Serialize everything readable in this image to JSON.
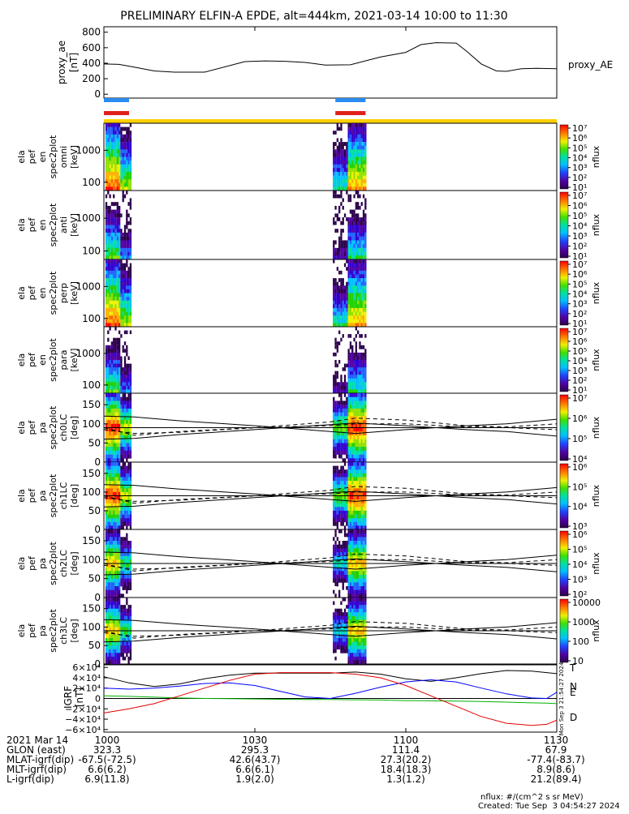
{
  "title": "PRELIMINARY ELFIN-A EPDE, alt=444km, 2021-03-14 10:00 to 11:30",
  "colors": {
    "blue_bar": "#2a8cf0",
    "red_bar": "#e0201c",
    "yellow_bar": "#ffd000",
    "igrf_T": "#000000",
    "igrf_N": "#0000ff",
    "igrf_E": "#00b000",
    "igrf_D": "#e00000"
  },
  "time_axis": {
    "start_minutes": 0,
    "end_minutes": 90,
    "tick_minutes": [
      0,
      30,
      60,
      90
    ]
  },
  "chart_data": [
    {
      "type": "line",
      "panel": "proxy_ae",
      "ylabel": [
        "proxy_ae",
        "[nT]"
      ],
      "legend": "proxy_AE",
      "ylim": [
        -50,
        870
      ],
      "yticks": [
        "800",
        "600",
        "400",
        "200",
        "0"
      ],
      "ytick_values": [
        800,
        600,
        400,
        200,
        0
      ],
      "x_minutes": [
        0,
        3,
        6,
        10,
        14,
        20,
        28,
        32,
        36,
        40,
        44,
        49,
        55,
        60,
        63,
        66,
        70,
        72,
        75,
        78,
        80,
        83,
        86,
        90
      ],
      "values": [
        390,
        385,
        350,
        300,
        285,
        285,
        420,
        430,
        425,
        410,
        375,
        380,
        480,
        540,
        640,
        665,
        660,
        560,
        390,
        300,
        295,
        330,
        335,
        330
      ]
    },
    {
      "type": "bar",
      "panel": "science_zone_bars",
      "segments_minutes": [
        [
          0,
          5
        ],
        [
          46,
          52
        ]
      ],
      "full_bar_minutes": [
        0,
        90
      ]
    },
    {
      "type": "heatmap",
      "panel": "ela_pef_en_spec2plot_omni",
      "ylabel": [
        "ela",
        "pef",
        "en",
        "spec2plot",
        "omni",
        "[keV]"
      ],
      "yscale": "log",
      "ylim_kev": [
        55,
        7000
      ],
      "yticks": [
        "1000",
        "100"
      ],
      "ytick_values": [
        1000,
        100
      ],
      "colorbar_label": "nflux",
      "colorbar_ticks": [
        "10⁷",
        "10⁶",
        "10⁵",
        "10⁴",
        "10³",
        "10²",
        "10¹"
      ],
      "colorbar_exponents": [
        7,
        6,
        5,
        4,
        3,
        2,
        1
      ],
      "intensity": "high"
    },
    {
      "type": "heatmap",
      "panel": "ela_pef_en_spec2plot_anti",
      "ylabel": [
        "ela",
        "pef",
        "en",
        "spec2plot",
        "anti",
        "[keV]"
      ],
      "yscale": "log",
      "ylim_kev": [
        55,
        7000
      ],
      "yticks": [
        "1000",
        "100"
      ],
      "ytick_values": [
        1000,
        100
      ],
      "colorbar_label": "nflux",
      "colorbar_ticks": [
        "10⁷",
        "10⁶",
        "10⁵",
        "10⁴",
        "10³",
        "10²",
        "10¹"
      ],
      "colorbar_exponents": [
        7,
        6,
        5,
        4,
        3,
        2,
        1
      ],
      "intensity": "low"
    },
    {
      "type": "heatmap",
      "panel": "ela_pef_en_spec2plot_perp",
      "ylabel": [
        "ela",
        "pef",
        "en",
        "spec2plot",
        "perp",
        "[keV]"
      ],
      "yscale": "log",
      "ylim_kev": [
        55,
        7000
      ],
      "yticks": [
        "1000",
        "100"
      ],
      "ytick_values": [
        1000,
        100
      ],
      "colorbar_label": "nflux",
      "colorbar_ticks": [
        "10⁷",
        "10⁶",
        "10⁵",
        "10⁴",
        "10³",
        "10²",
        "10¹"
      ],
      "colorbar_exponents": [
        7,
        6,
        5,
        4,
        3,
        2,
        1
      ],
      "intensity": "high"
    },
    {
      "type": "heatmap",
      "panel": "ela_pef_en_spec2plot_para",
      "ylabel": [
        "ela",
        "pef",
        "en",
        "spec2plot",
        "para",
        "[keV]"
      ],
      "yscale": "log",
      "ylim_kev": [
        55,
        7000
      ],
      "yticks": [
        "1000",
        "100"
      ],
      "ytick_values": [
        1000,
        100
      ],
      "colorbar_label": "nflux",
      "colorbar_ticks": [
        "10⁷",
        "10⁶",
        "10⁵",
        "10⁴",
        "10³",
        "10²",
        "10¹"
      ],
      "colorbar_exponents": [
        7,
        6,
        5,
        4,
        3,
        2,
        1
      ],
      "intensity": "low"
    },
    {
      "type": "heatmap",
      "panel": "ela_pef_pa_spec2plot_ch0LC",
      "ylabel": [
        "ela",
        "pef",
        "pa",
        "spec2plot",
        "ch0LC",
        "[deg]"
      ],
      "yscale": "linear",
      "ylim_deg": [
        0,
        180
      ],
      "yticks": [
        "150",
        "100",
        "50",
        "0"
      ],
      "ytick_values": [
        150,
        100,
        50,
        0
      ],
      "colorbar_label": "nflux",
      "colorbar_ticks": [
        "10⁷",
        "10⁶",
        "10⁵",
        "10⁴"
      ],
      "colorbar_exponents": [
        7,
        6,
        5,
        4
      ],
      "intensity": "high"
    },
    {
      "type": "heatmap",
      "panel": "ela_pef_pa_spec2plot_ch1LC",
      "ylabel": [
        "ela",
        "pef",
        "pa",
        "spec2plot",
        "ch1LC",
        "[deg]"
      ],
      "yscale": "linear",
      "ylim_deg": [
        0,
        180
      ],
      "yticks": [
        "150",
        "100",
        "50",
        "0"
      ],
      "ytick_values": [
        150,
        100,
        50,
        0
      ],
      "colorbar_label": "nflux",
      "colorbar_ticks": [
        "10⁶",
        "10⁵",
        "10⁴",
        "10³"
      ],
      "colorbar_exponents": [
        6,
        5,
        4,
        3
      ],
      "intensity": "high"
    },
    {
      "type": "heatmap",
      "panel": "ela_pef_pa_spec2plot_ch2LC",
      "ylabel": [
        "ela",
        "pef",
        "pa",
        "spec2plot",
        "ch2LC",
        "[deg]"
      ],
      "yscale": "linear",
      "ylim_deg": [
        0,
        180
      ],
      "yticks": [
        "150",
        "100",
        "50",
        "0"
      ],
      "ytick_values": [
        150,
        100,
        50,
        0
      ],
      "colorbar_label": "nflux",
      "colorbar_ticks": [
        "10⁶",
        "10⁵",
        "10⁴",
        "10³",
        "10²"
      ],
      "colorbar_exponents": [
        6,
        5,
        4,
        3,
        2
      ],
      "intensity": "mid"
    },
    {
      "type": "heatmap",
      "panel": "ela_pef_pa_spec2plot_ch3LC",
      "ylabel": [
        "ela",
        "pef",
        "pa",
        "spec2plot",
        "ch3LC",
        "[deg]"
      ],
      "yscale": "linear",
      "ylim_deg": [
        0,
        180
      ],
      "yticks": [
        "150",
        "100",
        "50",
        "0"
      ],
      "ytick_values": [
        150,
        100,
        50,
        0
      ],
      "colorbar_label": "nflux",
      "colorbar_ticks": [
        "10000",
        "1000",
        "100",
        "10"
      ],
      "colorbar_linear_log": [
        4,
        3,
        2,
        1
      ],
      "intensity": "mid"
    },
    {
      "type": "line",
      "panel": "pitch_angle_overlay_lines",
      "x_minutes": [
        0,
        6,
        15,
        30,
        45,
        50,
        60,
        72,
        80,
        90
      ],
      "solid_upper": [
        120,
        118,
        108,
        95,
        80,
        75,
        85,
        95,
        100,
        112
      ],
      "solid_lower": [
        90,
        90,
        90,
        90,
        90,
        90,
        90,
        90,
        90,
        90
      ],
      "solid_low": [
        60,
        62,
        72,
        85,
        98,
        102,
        95,
        85,
        80,
        68
      ],
      "dashed_upper": [
        85,
        75,
        78,
        90,
        105,
        115,
        110,
        95,
        92,
        100
      ],
      "dashed_low": [
        90,
        70,
        80,
        90,
        95,
        100,
        100,
        92,
        90,
        85
      ]
    },
    {
      "type": "line",
      "panel": "IGRF",
      "ylabel": [
        "IGRF",
        "[nT]"
      ],
      "ylim": [
        -65000,
        65000
      ],
      "yticks": [
        "6×10⁴",
        "4×10⁴",
        "2×10⁴",
        "0",
        "−2×10⁴",
        "−4×10⁴",
        "−6×10⁴"
      ],
      "ytick_values": [
        60000,
        40000,
        20000,
        0,
        -20000,
        -40000,
        -60000
      ],
      "legend": [
        "T",
        "N",
        "E",
        "D"
      ],
      "x_minutes": [
        0,
        5,
        10,
        15,
        20,
        25,
        30,
        35,
        40,
        45,
        50,
        55,
        60,
        65,
        70,
        75,
        80,
        85,
        88,
        90
      ],
      "series": [
        {
          "name": "T",
          "values": [
            42000,
            30000,
            23000,
            28000,
            38000,
            45000,
            49000,
            49000,
            49000,
            49000,
            51000,
            47000,
            38000,
            33000,
            40000,
            48000,
            54000,
            53000,
            50000,
            48000
          ]
        },
        {
          "name": "N",
          "values": [
            20000,
            18000,
            20000,
            24000,
            29000,
            30000,
            25000,
            14000,
            3000,
            0,
            10000,
            22000,
            32000,
            36000,
            32000,
            20000,
            9000,
            1000,
            0,
            12000
          ]
        },
        {
          "name": "E",
          "values": [
            5000,
            4000,
            2500,
            1000,
            0,
            -500,
            -1000,
            -1500,
            -2000,
            -2000,
            -2500,
            -3000,
            -4000,
            -4500,
            -5000,
            -6000,
            -7000,
            -8500,
            -9000,
            -10000
          ]
        },
        {
          "name": "D",
          "values": [
            -28000,
            -20000,
            -10000,
            5000,
            20000,
            35000,
            47000,
            50000,
            50000,
            50000,
            47000,
            40000,
            25000,
            5000,
            -15000,
            -35000,
            -48000,
            -52000,
            -50000,
            -42000
          ]
        }
      ]
    }
  ],
  "orbit_table": {
    "row_labels": [
      "2021 Mar 14",
      "GLON (east)",
      "MLAT-igrf(dip)",
      "MLT-igrf(dip)",
      "L-igrf(dip)"
    ],
    "columns": [
      [
        "1000",
        "323.3",
        "-67.5(-72.5)",
        "6.6(6.2)",
        "6.9(11.8)"
      ],
      [
        "1030",
        "295.3",
        "42.6(43.7)",
        "6.6(6.1)",
        "1.9(2.0)"
      ],
      [
        "1100",
        "111.4",
        "27.3(20.2)",
        "18.4(18.3)",
        "1.3(1.2)"
      ],
      [
        "1130",
        "67.9",
        "-77.4(-83.7)",
        "8.9(8.6)",
        "21.2(89.4)"
      ]
    ]
  },
  "footer": {
    "units": "nflux: #/(cm^2 s sr MeV)",
    "created": "Created: Tue Sep  3 04:54:27 2024",
    "side_stamp": "Mon Sep  3 21:54:27 2024"
  }
}
